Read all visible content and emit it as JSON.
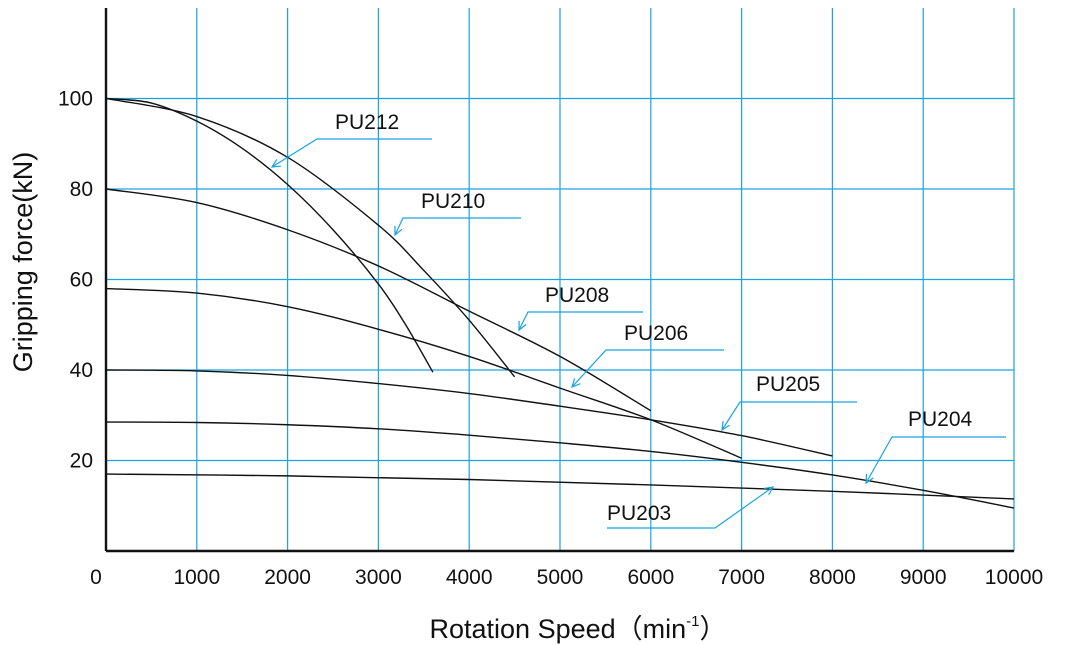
{
  "chart_data": {
    "type": "line",
    "xlabel": "Rotation Speed（min",
    "xlabel_sup": "-1",
    "xlabel_end": "）",
    "ylabel": "Gripping force(kN)",
    "xlim": [
      0,
      10000
    ],
    "ylim": [
      0,
      120
    ],
    "x_ticks": [
      "0",
      "1000",
      "2000",
      "3000",
      "4000",
      "5000",
      "6000",
      "7000",
      "8000",
      "9000",
      "10000"
    ],
    "y_ticks": [
      "20",
      "40",
      "60",
      "80",
      "100"
    ],
    "grid": true,
    "series": [
      {
        "name": "PU212",
        "x": [
          0,
          500,
          1000,
          1500,
          2000,
          2500,
          3000,
          3300,
          3600
        ],
        "y": [
          100,
          99,
          95,
          89,
          81,
          71,
          59,
          50,
          39.5
        ]
      },
      {
        "name": "PU210",
        "x": [
          0,
          1000,
          2000,
          3000,
          3500,
          4000,
          4500
        ],
        "y": [
          100,
          96,
          87,
          72,
          62,
          51,
          38.5
        ]
      },
      {
        "name": "PU208",
        "x": [
          0,
          1000,
          2000,
          3000,
          4000,
          5000,
          6000
        ],
        "y": [
          80,
          77,
          71,
          63,
          53,
          43,
          31
        ]
      },
      {
        "name": "PU206",
        "x": [
          0,
          1000,
          2000,
          3000,
          4000,
          5000,
          6000,
          7000
        ],
        "y": [
          58,
          57,
          54,
          49,
          43,
          36,
          29,
          20.5
        ]
      },
      {
        "name": "PU205",
        "x": [
          0,
          1000,
          2000,
          3000,
          4000,
          5000,
          6000,
          7000,
          8000
        ],
        "y": [
          40,
          39.8,
          38.8,
          37,
          34.8,
          32,
          29,
          25.5,
          21
        ]
      },
      {
        "name": "PU204",
        "x": [
          0,
          1000,
          2000,
          3000,
          4000,
          5000,
          6000,
          7000,
          8000,
          9000,
          10000
        ],
        "y": [
          28.5,
          28.4,
          27.9,
          27,
          25.6,
          23.9,
          22,
          19.6,
          16.8,
          13.4,
          9.5
        ]
      },
      {
        "name": "PU203",
        "x": [
          0,
          2000,
          4000,
          6000,
          8000,
          10000
        ],
        "y": [
          17,
          16.6,
          15.8,
          14.6,
          13.2,
          11.5
        ]
      }
    ]
  }
}
